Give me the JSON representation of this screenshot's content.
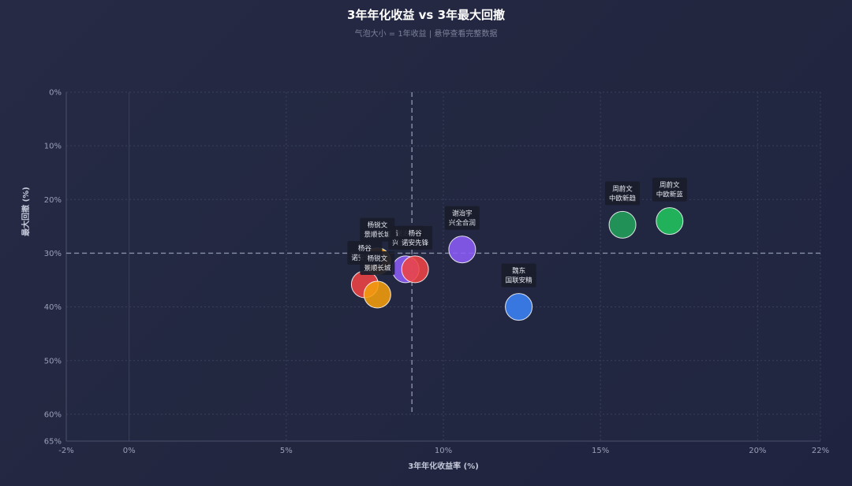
{
  "chart_data": {
    "type": "scatter",
    "title": "3年年化收益 vs 3年最大回撤",
    "subtitle": "气泡大小 = 1年收益 | 悬停查看完整数据",
    "xlabel": "3年年化收益率 (%)",
    "ylabel": "最大回撤 (%)",
    "xlim": [
      -2,
      22
    ],
    "ylim": [
      0,
      65
    ],
    "y_inverted": true,
    "x_ticks": [
      "-2%",
      "0%",
      "5%",
      "10%",
      "15%",
      "20%",
      "22%"
    ],
    "x_tick_values": [
      -2,
      0,
      5,
      10,
      15,
      20,
      22
    ],
    "y_ticks": [
      "0%",
      "10%",
      "20%",
      "30%",
      "40%",
      "50%",
      "60%",
      "65%"
    ],
    "y_tick_values": [
      0,
      10,
      20,
      30,
      40,
      50,
      60,
      65
    ],
    "reference_lines": {
      "x": 9,
      "y": 30
    },
    "grid": true,
    "points": [
      {
        "manager": "杨锐文",
        "fund": "景顺长城",
        "x": 7.9,
        "y": 31.5,
        "color": "#f59e0b"
      },
      {
        "manager": "杨谷",
        "fund": "诺安先锋",
        "x": 7.5,
        "y": 35.8,
        "color": "#ef4444"
      },
      {
        "manager": "谢治宇",
        "fund": "兴全合润",
        "x": 8.8,
        "y": 33.0,
        "color": "#8b5cf6"
      },
      {
        "manager": "杨谷",
        "fund": "诺安先锋",
        "x": 9.1,
        "y": 33.0,
        "color": "#ef4444"
      },
      {
        "manager": "杨锐文",
        "fund": "景顺长城",
        "x": 7.9,
        "y": 37.7,
        "color": "#f59e0b"
      },
      {
        "manager": "谢治宇",
        "fund": "兴全合润",
        "x": 10.6,
        "y": 29.3,
        "color": "#8b5cf6"
      },
      {
        "manager": "魏东",
        "fund": "国联安精",
        "x": 12.4,
        "y": 40.0,
        "color": "#3b82f6"
      },
      {
        "manager": "周蔚文",
        "fund": "中欧新趋",
        "x": 15.7,
        "y": 24.7,
        "color": "#22a05a"
      },
      {
        "manager": "周蔚文",
        "fund": "中欧新蓝",
        "x": 17.2,
        "y": 24.0,
        "color": "#22c55e"
      }
    ]
  }
}
